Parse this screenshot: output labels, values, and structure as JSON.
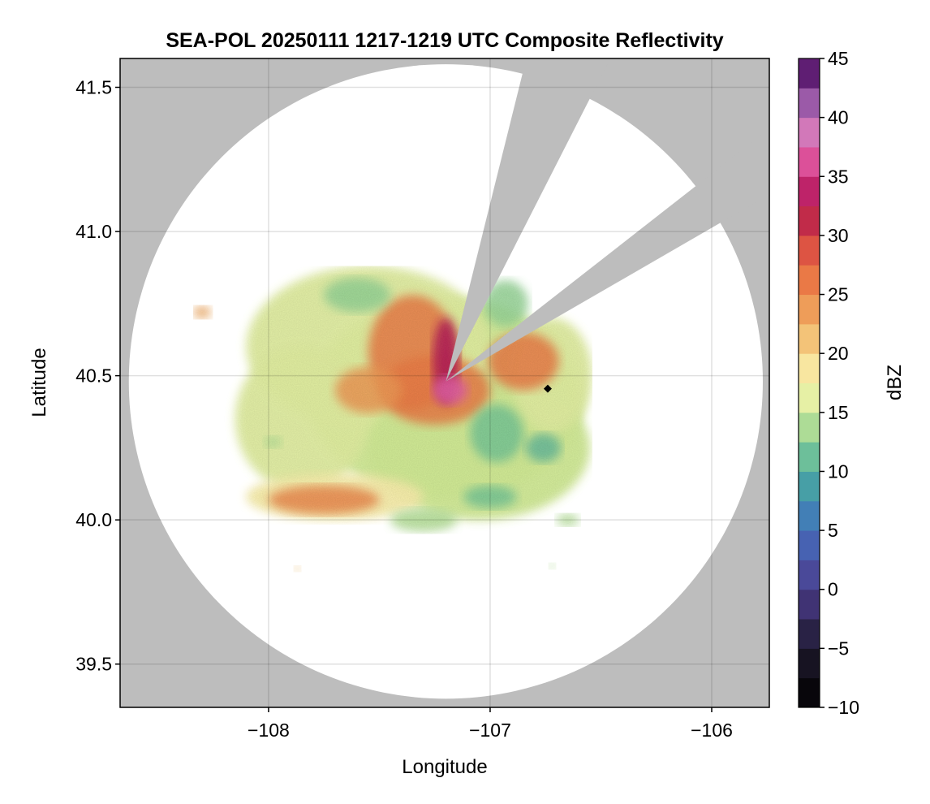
{
  "chart_data": {
    "type": "heatmap",
    "title": "SEA-POL 20250111 1217-1219 UTC Composite Reflectivity",
    "xlabel": "Longitude",
    "ylabel": "Latitude",
    "xlim": [
      -108.67,
      -105.74
    ],
    "ylim": [
      39.35,
      41.6
    ],
    "xticks": [
      -108,
      -107,
      -106
    ],
    "xtick_labels": [
      "−108",
      "−107",
      "−106"
    ],
    "yticks": [
      39.5,
      40.0,
      40.5,
      41.0,
      41.5
    ],
    "ytick_labels": [
      "39.5",
      "40.0",
      "40.5",
      "41.0",
      "41.5"
    ],
    "grid": true,
    "background_color": "#bdbdbd",
    "radar": {
      "center_lon": -107.2,
      "center_lat": 40.48,
      "range_deg_lat": 1.1,
      "blocked_sectors_deg_from_north": [
        [
          14,
          27
        ],
        [
          52,
          60
        ]
      ]
    },
    "marker": {
      "lon": -106.74,
      "lat": 40.455,
      "shape": "diamond",
      "color": "#000000"
    },
    "colorbar": {
      "label": "dBZ",
      "min": -10,
      "max": 45,
      "step": 2.5,
      "ticks": [
        -10,
        -5,
        0,
        5,
        10,
        15,
        20,
        25,
        30,
        35,
        40,
        45
      ],
      "tick_labels": [
        "−10",
        "−5",
        "0",
        "5",
        "10",
        "15",
        "20",
        "25",
        "30",
        "35",
        "40",
        "45"
      ],
      "colormap": "spectral-like (black, purple-blue, teal, green, yellow, orange, red, magenta, purple)"
    },
    "precip_regions": [
      {
        "lon": -107.2,
        "lat": 40.42,
        "rx": 0.62,
        "ry": 0.35,
        "dbz": 15
      },
      {
        "lon": -107.55,
        "lat": 40.6,
        "rx": 0.55,
        "ry": 0.28,
        "dbz": 16
      },
      {
        "lon": -107.05,
        "lat": 40.25,
        "rx": 0.5,
        "ry": 0.25,
        "dbz": 15
      },
      {
        "lon": -107.85,
        "lat": 40.35,
        "rx": 0.3,
        "ry": 0.25,
        "dbz": 16
      },
      {
        "lon": -107.7,
        "lat": 40.08,
        "rx": 0.4,
        "ry": 0.08,
        "dbz": 18
      },
      {
        "lon": -106.72,
        "lat": 40.5,
        "rx": 0.18,
        "ry": 0.2,
        "dbz": 16
      },
      {
        "lon": -107.35,
        "lat": 40.58,
        "rx": 0.2,
        "ry": 0.2,
        "dbz": 26
      },
      {
        "lon": -107.25,
        "lat": 40.45,
        "rx": 0.25,
        "ry": 0.12,
        "dbz": 26
      },
      {
        "lon": -106.85,
        "lat": 40.55,
        "rx": 0.16,
        "ry": 0.1,
        "dbz": 26
      },
      {
        "lon": -107.75,
        "lat": 40.07,
        "rx": 0.25,
        "ry": 0.05,
        "dbz": 25
      },
      {
        "lon": -107.55,
        "lat": 40.45,
        "rx": 0.15,
        "ry": 0.08,
        "dbz": 24
      },
      {
        "lon": -107.2,
        "lat": 40.55,
        "rx": 0.06,
        "ry": 0.15,
        "dbz": 33
      },
      {
        "lon": -107.18,
        "lat": 40.45,
        "rx": 0.08,
        "ry": 0.05,
        "dbz": 37
      },
      {
        "lon": -106.97,
        "lat": 40.3,
        "rx": 0.12,
        "ry": 0.1,
        "dbz": 12
      },
      {
        "lon": -107.0,
        "lat": 40.08,
        "rx": 0.12,
        "ry": 0.04,
        "dbz": 12
      },
      {
        "lon": -107.3,
        "lat": 40.0,
        "rx": 0.15,
        "ry": 0.04,
        "dbz": 14
      },
      {
        "lon": -107.6,
        "lat": 40.78,
        "rx": 0.15,
        "ry": 0.06,
        "dbz": 13
      },
      {
        "lon": -106.76,
        "lat": 40.25,
        "rx": 0.08,
        "ry": 0.05,
        "dbz": 11
      },
      {
        "lon": -106.93,
        "lat": 40.75,
        "rx": 0.1,
        "ry": 0.08,
        "dbz": 13
      },
      {
        "lon": -108.3,
        "lat": 40.72,
        "rx": 0.04,
        "ry": 0.02,
        "dbz": 23
      },
      {
        "lon": -107.87,
        "lat": 39.83,
        "rx": 0.015,
        "ry": 0.01,
        "dbz": 21
      },
      {
        "lon": -106.65,
        "lat": 40.0,
        "rx": 0.05,
        "ry": 0.02,
        "dbz": 14
      },
      {
        "lon": -106.72,
        "lat": 39.84,
        "rx": 0.015,
        "ry": 0.01,
        "dbz": 14
      },
      {
        "lon": -107.98,
        "lat": 40.27,
        "rx": 0.04,
        "ry": 0.02,
        "dbz": 14
      }
    ]
  }
}
